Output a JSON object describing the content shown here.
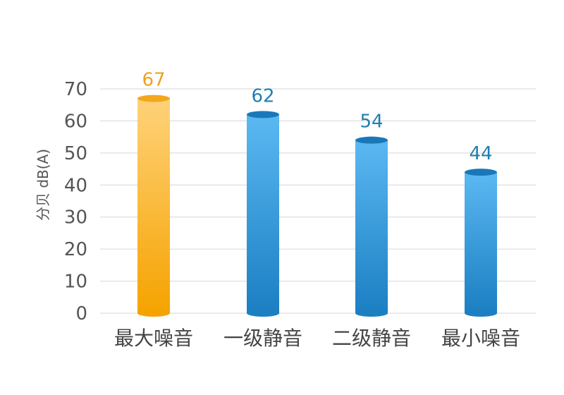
{
  "chart_data": {
    "type": "bar",
    "title": "",
    "xlabel": "",
    "ylabel": "分贝 dB(A)",
    "categories": [
      "最大噪音",
      "一级静音",
      "二级静音",
      "最小噪音"
    ],
    "values": [
      67,
      62,
      54,
      44
    ],
    "ylim": [
      0,
      70
    ],
    "yticks": [
      0,
      10,
      20,
      30,
      40,
      50,
      60,
      70
    ],
    "grid": true,
    "data_labels": true,
    "colors": {
      "highlight_bar": [
        "#ffd27a",
        "#f5a300"
      ],
      "highlight_label": "#f0a020",
      "bar": [
        "#5bb8f2",
        "#1b7fc2"
      ],
      "bar_label": "#1f7fb0"
    }
  }
}
